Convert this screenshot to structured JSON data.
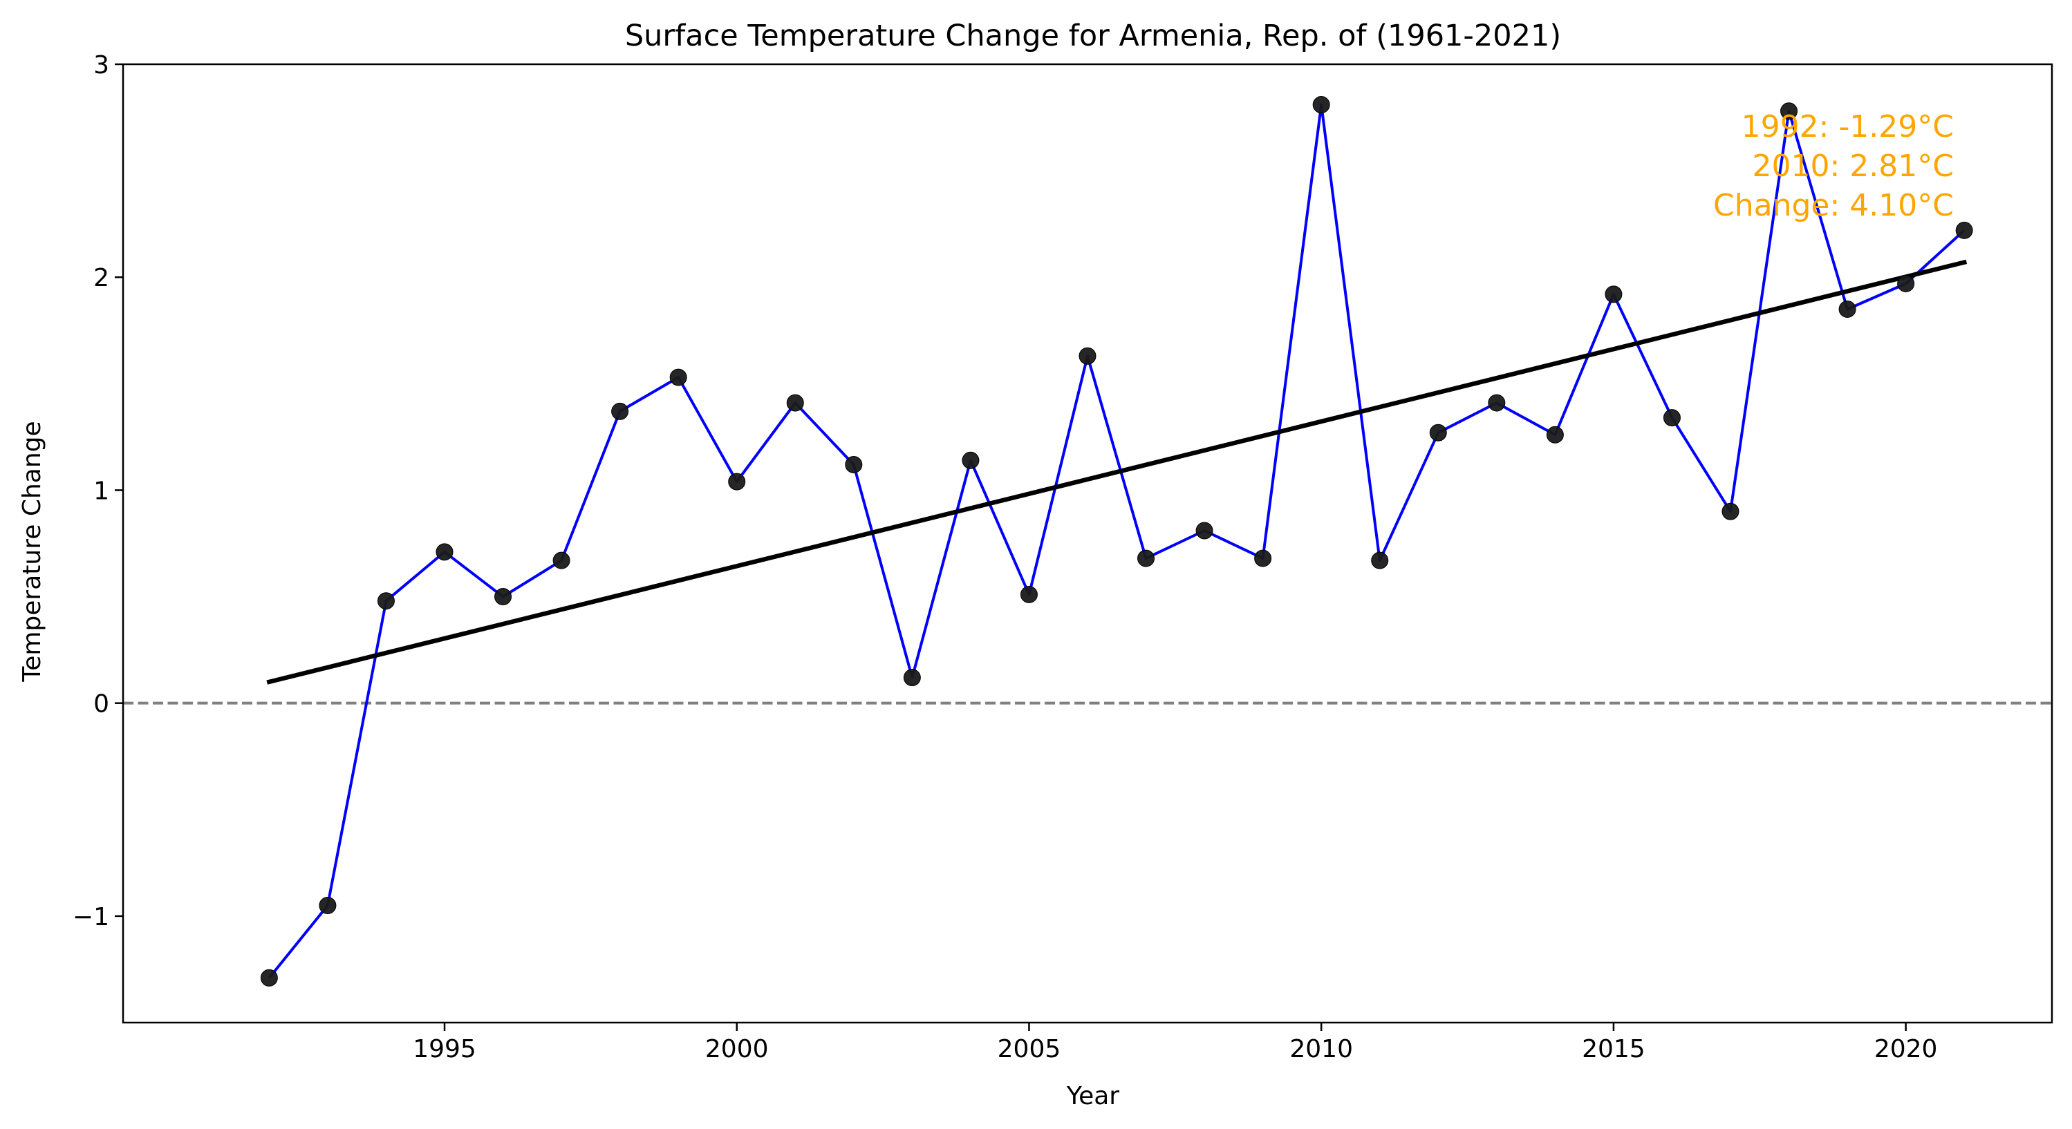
{
  "chart_data": {
    "type": "line",
    "title": "Surface Temperature Change for Armenia, Rep. of (1961-2021)",
    "xlabel": "Year",
    "ylabel": "Temperature Change",
    "xlim": [
      1989.5,
      2022.5
    ],
    "ylim": [
      -1.5,
      3.0
    ],
    "xticks": [
      1995,
      2000,
      2005,
      2010,
      2015,
      2020
    ],
    "yticks": [
      -1,
      0,
      1,
      2,
      3
    ],
    "ytick_labels": [
      "−1",
      "0",
      "1",
      "2",
      "3"
    ],
    "grid": false,
    "reference_line": {
      "y": 0,
      "style": "dashed",
      "color": "#808080"
    },
    "series": [
      {
        "color": "#0000ff",
        "marker_color": "#1a1a1a",
        "x": [
          1992,
          1993,
          1994,
          1995,
          1996,
          1997,
          1998,
          1999,
          2000,
          2001,
          2002,
          2003,
          2004,
          2005,
          2006,
          2007,
          2008,
          2009,
          2010,
          2011,
          2012,
          2013,
          2014,
          2015,
          2016,
          2017,
          2018,
          2019,
          2020,
          2021
        ],
        "y": [
          -1.29,
          -0.95,
          0.48,
          0.71,
          0.5,
          0.67,
          1.37,
          1.53,
          1.04,
          1.41,
          1.12,
          0.12,
          1.14,
          0.51,
          1.63,
          0.68,
          0.81,
          0.68,
          2.81,
          0.67,
          1.27,
          1.41,
          1.26,
          1.92,
          1.34,
          0.9,
          2.78,
          1.85,
          1.97,
          2.22
        ]
      }
    ],
    "trend_line": {
      "color": "#000000",
      "x": [
        1992,
        2021
      ],
      "y": [
        0.1,
        2.07
      ]
    },
    "annotation": {
      "color": "#ffa500",
      "lines": [
        "1992: -1.29°C",
        "2010: 2.81°C",
        "Change: 4.10°C"
      ],
      "placement": "top-right"
    }
  }
}
